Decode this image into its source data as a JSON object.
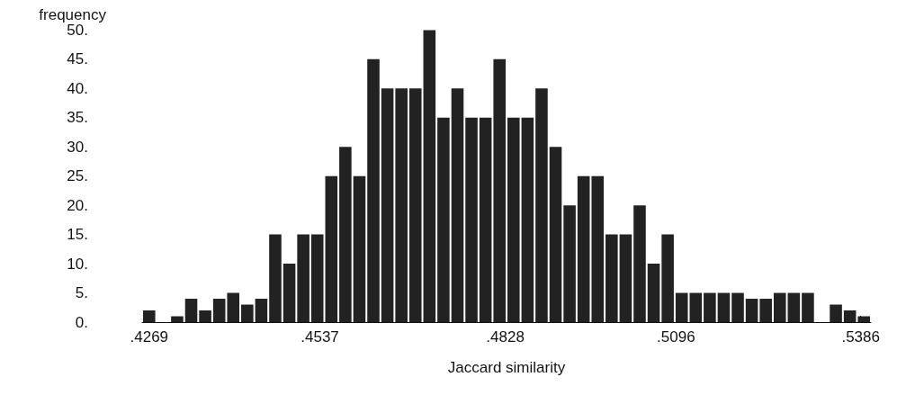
{
  "chart_data": {
    "type": "histogram",
    "xlabel": "Jaccard similarity",
    "ylabel": "frequency",
    "color": "#222222",
    "bins": [
      0.4258,
      0.428,
      0.4302,
      0.4324,
      0.4346,
      0.4368,
      0.439,
      0.4412,
      0.4434,
      0.4456,
      0.4478,
      0.45,
      0.4522,
      0.4544,
      0.4566,
      0.4588,
      0.461,
      0.4632,
      0.4654,
      0.4676,
      0.4698,
      0.472,
      0.4742,
      0.4764,
      0.4786,
      0.4808,
      0.483,
      0.4852,
      0.4874,
      0.4896,
      0.4918,
      0.494,
      0.4962,
      0.4984,
      0.5006,
      0.5028,
      0.505,
      0.5072,
      0.5094,
      0.5116,
      0.5138,
      0.516,
      0.5182,
      0.5204,
      0.5226,
      0.5248,
      0.527,
      0.5292,
      0.5314,
      0.5336,
      0.5358,
      0.538,
      0.5402
    ],
    "values": [
      2,
      0,
      1,
      4,
      2,
      4,
      5,
      3,
      4,
      15,
      10,
      15,
      15,
      25,
      30,
      25,
      45,
      40,
      40,
      40,
      50,
      35,
      40,
      35,
      35,
      45,
      35,
      35,
      40,
      30,
      20,
      25,
      25,
      15,
      15,
      20,
      10,
      15,
      5,
      5,
      5,
      5,
      5,
      4,
      4,
      5,
      5,
      5,
      0,
      3,
      2,
      1
    ],
    "xlim": [
      0.4258,
      0.5402
    ],
    "xticks": [
      {
        "value": 0.4269,
        "label": ".4269"
      },
      {
        "value": 0.4537,
        "label": ".4537"
      },
      {
        "value": 0.4828,
        "label": ".4828"
      },
      {
        "value": 0.5096,
        "label": ".5096"
      },
      {
        "value": 0.5386,
        "label": ".5386"
      }
    ],
    "ylim": [
      0,
      50
    ],
    "yticks": [
      {
        "value": 0,
        "label": "0."
      },
      {
        "value": 5,
        "label": "5."
      },
      {
        "value": 10,
        "label": "10."
      },
      {
        "value": 15,
        "label": "15."
      },
      {
        "value": 20,
        "label": "20."
      },
      {
        "value": 25,
        "label": "25."
      },
      {
        "value": 30,
        "label": "30."
      },
      {
        "value": 35,
        "label": "35."
      },
      {
        "value": 40,
        "label": "40."
      },
      {
        "value": 45,
        "label": "45."
      },
      {
        "value": 50,
        "label": "50."
      }
    ],
    "grid": false
  }
}
